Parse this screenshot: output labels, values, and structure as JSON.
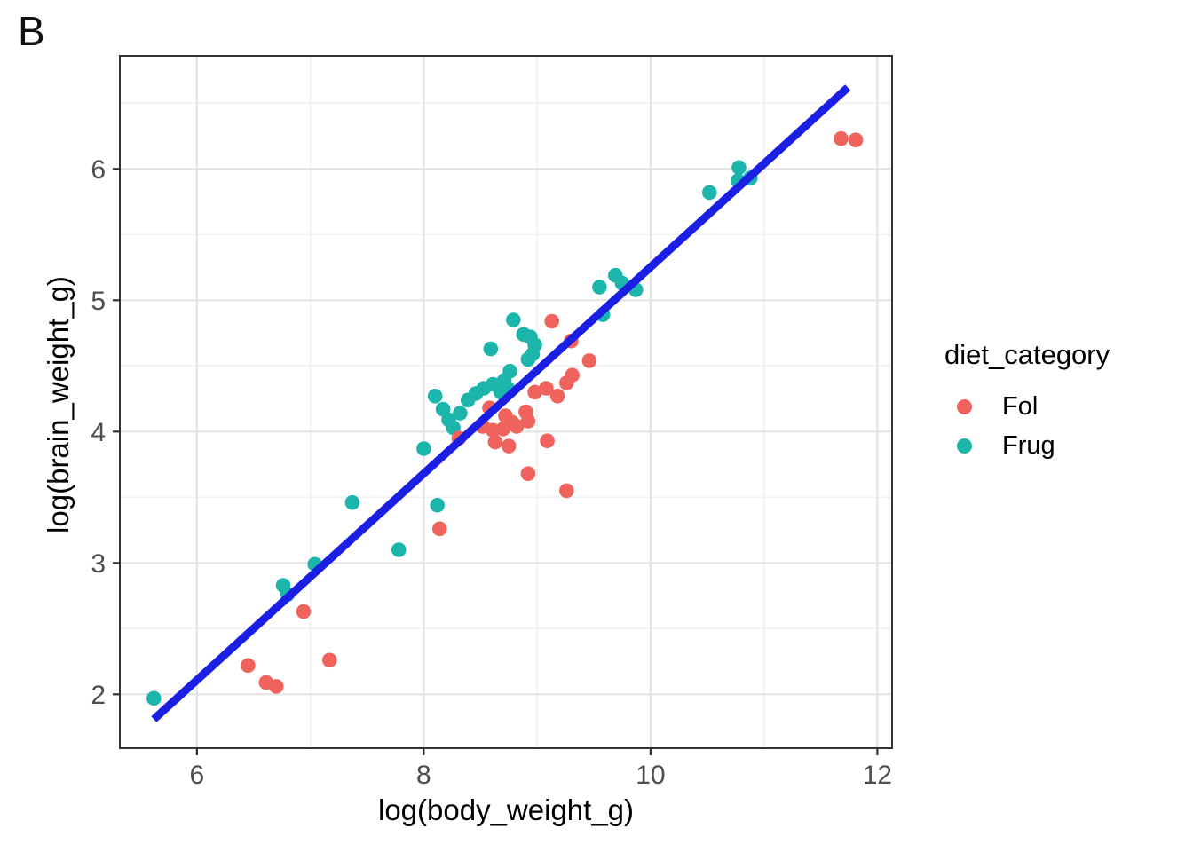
{
  "panel_label": "B",
  "chart_data": {
    "type": "scatter",
    "title": "",
    "xlabel": "log(body_weight_g)",
    "ylabel": "log(brain_weight_g)",
    "xlim": [
      5.32,
      12.13
    ],
    "ylim": [
      1.59,
      6.86
    ],
    "xticks": [
      6,
      8,
      10,
      12
    ],
    "yticks": [
      2,
      3,
      4,
      5,
      6
    ],
    "grid": "major and minor, light gray on white panel with dark border",
    "legend_title": "diet_category",
    "legend_position": "right",
    "series": [
      {
        "name": "Fol",
        "color": "#F0635C",
        "points": [
          [
            6.45,
            2.22
          ],
          [
            6.61,
            2.09
          ],
          [
            6.7,
            2.06
          ],
          [
            6.94,
            2.63
          ],
          [
            7.17,
            2.26
          ],
          [
            8.14,
            3.26
          ],
          [
            8.31,
            3.95
          ],
          [
            8.52,
            4.04
          ],
          [
            8.58,
            4.18
          ],
          [
            8.61,
            4.01
          ],
          [
            8.63,
            3.92
          ],
          [
            8.7,
            4.02
          ],
          [
            8.72,
            4.12
          ],
          [
            8.75,
            3.89
          ],
          [
            8.78,
            4.07
          ],
          [
            8.82,
            4.04
          ],
          [
            8.9,
            4.15
          ],
          [
            8.92,
            4.08
          ],
          [
            8.92,
            3.68
          ],
          [
            9.09,
            3.93
          ],
          [
            9.26,
            3.55
          ],
          [
            8.98,
            4.3
          ],
          [
            9.08,
            4.33
          ],
          [
            9.18,
            4.27
          ],
          [
            9.26,
            4.37
          ],
          [
            9.31,
            4.43
          ],
          [
            9.46,
            4.54
          ],
          [
            9.13,
            4.84
          ],
          [
            9.3,
            4.69
          ],
          [
            11.68,
            6.23
          ],
          [
            11.81,
            6.22
          ]
        ]
      },
      {
        "name": "Frug",
        "color": "#1CB5AC",
        "points": [
          [
            5.62,
            1.97
          ],
          [
            6.76,
            2.83
          ],
          [
            6.8,
            2.76
          ],
          [
            7.04,
            2.99
          ],
          [
            7.37,
            3.46
          ],
          [
            7.78,
            3.1
          ],
          [
            8.12,
            3.44
          ],
          [
            8.0,
            3.87
          ],
          [
            8.1,
            4.27
          ],
          [
            8.17,
            4.17
          ],
          [
            8.22,
            4.09
          ],
          [
            8.26,
            4.03
          ],
          [
            8.32,
            4.14
          ],
          [
            8.39,
            4.24
          ],
          [
            8.46,
            4.29
          ],
          [
            8.53,
            4.33
          ],
          [
            8.61,
            4.36
          ],
          [
            8.68,
            4.3
          ],
          [
            8.74,
            4.33
          ],
          [
            8.59,
            4.63
          ],
          [
            8.76,
            4.46
          ],
          [
            8.71,
            4.39
          ],
          [
            8.79,
            4.85
          ],
          [
            8.88,
            4.74
          ],
          [
            8.94,
            4.72
          ],
          [
            8.98,
            4.66
          ],
          [
            8.96,
            4.59
          ],
          [
            8.92,
            4.55
          ],
          [
            9.58,
            4.89
          ],
          [
            9.55,
            5.1
          ],
          [
            9.69,
            5.19
          ],
          [
            9.75,
            5.13
          ],
          [
            9.87,
            5.08
          ],
          [
            10.52,
            5.82
          ],
          [
            10.77,
            5.91
          ],
          [
            10.78,
            6.01
          ],
          [
            10.88,
            5.93
          ]
        ]
      }
    ],
    "trend_line": {
      "x1": 5.62,
      "y1": 1.81,
      "x2": 11.74,
      "y2": 6.62,
      "color": "#1B1EE3"
    }
  },
  "colors": {
    "background": "#FFFFFF",
    "grid_major": "#E4E4E4",
    "grid_minor": "#F1F1F1",
    "panel_border": "#333333",
    "tick_mark": "#333333",
    "tick_text": "#4D4D4D",
    "title_text": "#000000"
  }
}
